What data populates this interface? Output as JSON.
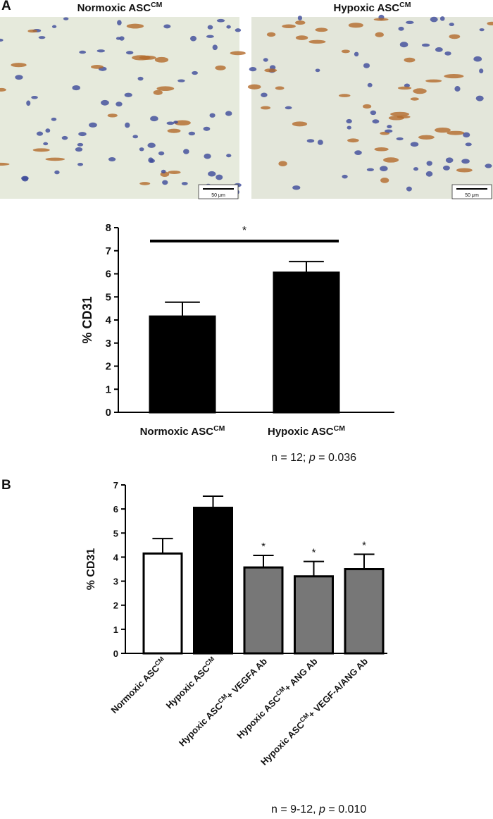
{
  "figure": {
    "panel_labels": [
      "A",
      "B"
    ],
    "images": [
      {
        "title": [
          "Normoxic ASC",
          "CM"
        ],
        "scale_bar": "50 μm"
      },
      {
        "title": [
          "Hypoxic ASC",
          "CM"
        ],
        "scale_bar": "50 μm"
      }
    ]
  },
  "chart_data": [
    {
      "type": "bar",
      "y_label": "% CD31",
      "categories": [
        [
          "Normoxic ASC",
          "CM"
        ],
        [
          "Hypoxic ASC",
          "CM"
        ]
      ],
      "values": [
        4.15,
        6.05
      ],
      "errors": [
        0.62,
        0.48
      ],
      "colors": [
        "#000000",
        "#000000"
      ],
      "ylim": [
        0,
        8
      ],
      "yticks": [
        0,
        1,
        2,
        3,
        4,
        5,
        6,
        7,
        8
      ],
      "significance_label": "*",
      "annotation": [
        "n = 12; ",
        "p",
        " = 0.036"
      ]
    },
    {
      "type": "bar",
      "y_label": "% CD31",
      "categories": [
        [
          "Normoxic ASC",
          "CM"
        ],
        [
          "Hypoxic ASC",
          "CM"
        ],
        [
          "Hypoxic ASC",
          "CM",
          "+ VEGFA Ab"
        ],
        [
          "Hypoxic ASC",
          "CM",
          "+ ANG Ab"
        ],
        [
          "Hypoxic ASC",
          "CM",
          "+ VEGF-A/ANG Ab"
        ]
      ],
      "values": [
        4.15,
        6.05,
        3.57,
        3.2,
        3.5
      ],
      "errors": [
        0.62,
        0.48,
        0.5,
        0.62,
        0.62
      ],
      "colors": [
        "#ffffff",
        "#000000",
        "#777777",
        "#777777",
        "#777777"
      ],
      "significance": [
        null,
        null,
        "*",
        "*",
        "*"
      ],
      "ylim": [
        0,
        7
      ],
      "yticks": [
        0,
        1,
        2,
        3,
        4,
        5,
        6,
        7
      ],
      "annotation": [
        "n = 9-12, ",
        "p",
        " = 0.010"
      ]
    }
  ]
}
